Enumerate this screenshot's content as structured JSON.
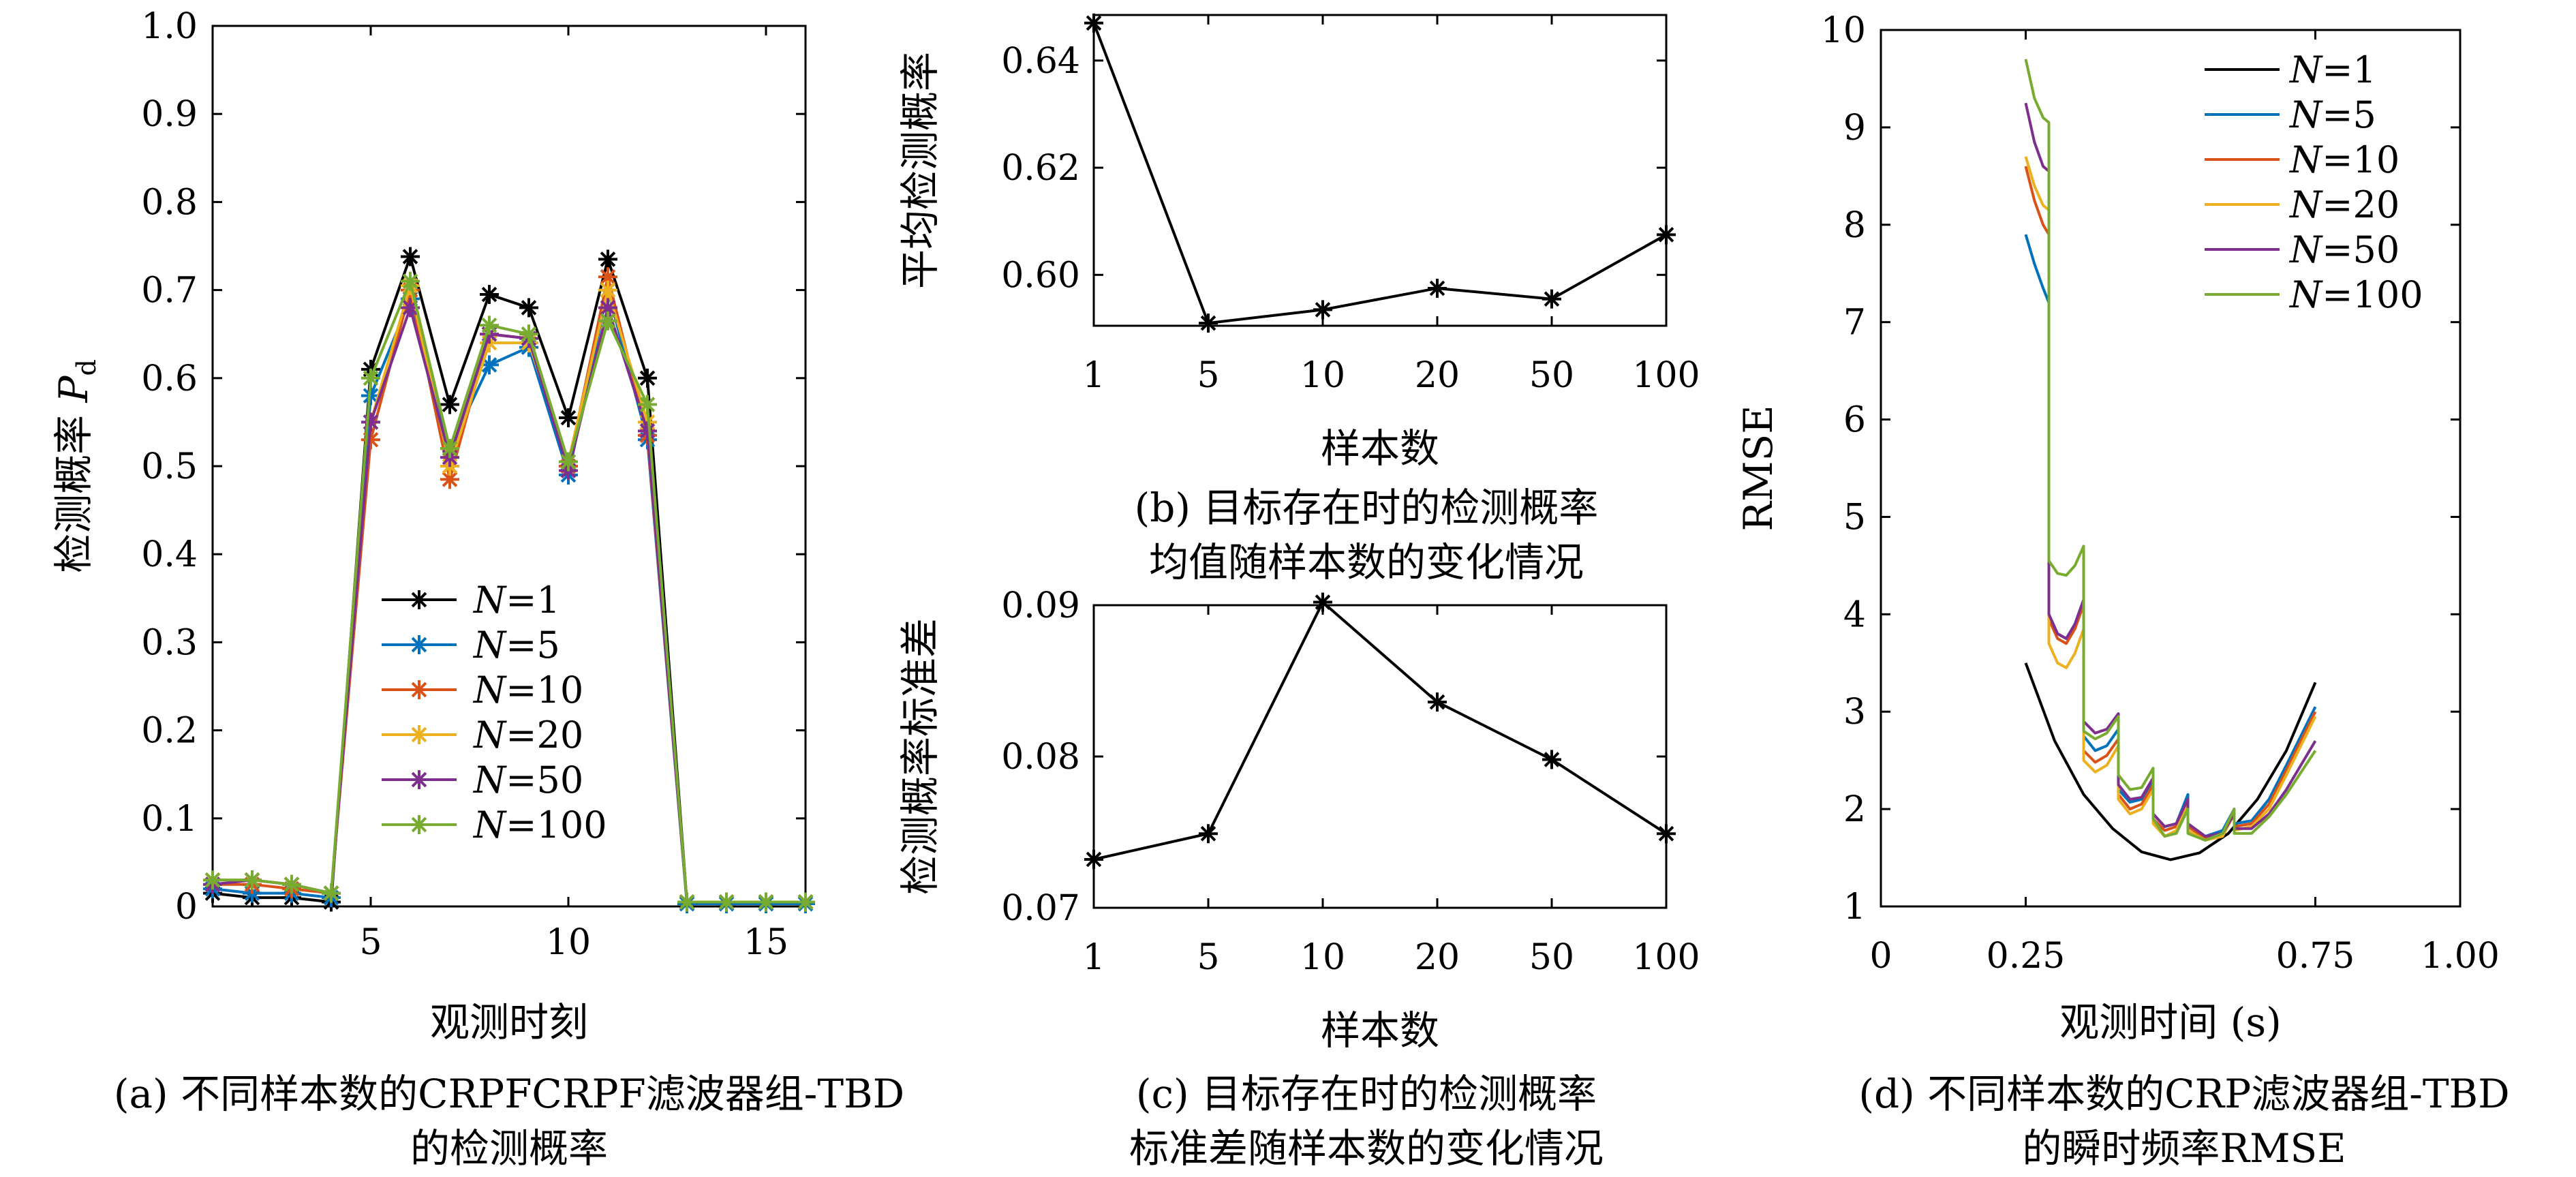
{
  "chart_data": [
    {
      "id": "a",
      "type": "line",
      "caption": [
        "(a) 不同样本数的CRPFCRPF滤波器组-TBD",
        "的检测概率"
      ],
      "xlabel": "观测时刻",
      "ylabel_main": "检测概率",
      "ylabel_sym": "P",
      "ylabel_sub": "d",
      "xlim": [
        1,
        16
      ],
      "ylim": [
        0,
        1
      ],
      "xticks": [
        5,
        10,
        15
      ],
      "yticks": [
        0,
        0.1,
        0.2,
        0.3,
        0.4,
        0.5,
        0.6,
        0.7,
        0.8,
        0.9,
        1.0
      ],
      "ytick_labels": [
        "0",
        "0.1",
        "0.2",
        "0.3",
        "0.4",
        "0.5",
        "0.6",
        "0.7",
        "0.8",
        "0.9",
        "1.0"
      ],
      "legend_position": "center",
      "x": [
        1,
        2,
        3,
        4,
        5,
        6,
        7,
        8,
        9,
        10,
        11,
        12,
        13,
        14,
        15,
        16
      ],
      "series": [
        {
          "label": "N",
          "eq": "=1",
          "color": "#000000",
          "values": [
            0.015,
            0.01,
            0.01,
            0.005,
            0.61,
            0.738,
            0.57,
            0.695,
            0.68,
            0.555,
            0.735,
            0.6,
            0.005,
            0.005,
            0.005,
            0.005
          ]
        },
        {
          "label": "N",
          "eq": "=5",
          "color": "#0072BD",
          "values": [
            0.02,
            0.015,
            0.015,
            0.01,
            0.58,
            0.69,
            0.52,
            0.615,
            0.635,
            0.49,
            0.7,
            0.53,
            0.003,
            0.003,
            0.003,
            0.003
          ]
        },
        {
          "label": "N",
          "eq": "=10",
          "color": "#D95319",
          "values": [
            0.025,
            0.025,
            0.02,
            0.015,
            0.53,
            0.7,
            0.485,
            0.65,
            0.645,
            0.5,
            0.715,
            0.535,
            0.005,
            0.005,
            0.005,
            0.005
          ]
        },
        {
          "label": "N",
          "eq": "=20",
          "color": "#EDB120",
          "values": [
            0.03,
            0.03,
            0.025,
            0.015,
            0.55,
            0.705,
            0.5,
            0.64,
            0.64,
            0.505,
            0.7,
            0.55,
            0.005,
            0.005,
            0.005,
            0.005
          ]
        },
        {
          "label": "N",
          "eq": "=50",
          "color": "#7E2F8E",
          "values": [
            0.025,
            0.03,
            0.025,
            0.015,
            0.55,
            0.68,
            0.51,
            0.65,
            0.645,
            0.495,
            0.68,
            0.54,
            0.005,
            0.005,
            0.005,
            0.005
          ]
        },
        {
          "label": "N",
          "eq": "=100",
          "color": "#77AC30",
          "values": [
            0.03,
            0.03,
            0.025,
            0.015,
            0.6,
            0.71,
            0.52,
            0.66,
            0.65,
            0.505,
            0.665,
            0.57,
            0.005,
            0.005,
            0.005,
            0.005
          ]
        }
      ]
    },
    {
      "id": "b",
      "type": "line",
      "caption": [
        "(b) 目标存在时的检测概率",
        "均值随样本数的变化情况"
      ],
      "xlabel": "样本数",
      "ylabel": "平均检测概率",
      "categories": [
        "1",
        "5",
        "10",
        "20",
        "50",
        "100"
      ],
      "values": [
        0.647,
        0.591,
        0.5935,
        0.5975,
        0.5955,
        0.6075
      ],
      "ylim": [
        0.5905,
        0.6485
      ],
      "yticks": [
        0.6,
        0.62,
        0.64
      ],
      "ytick_labels": [
        "0.60",
        "0.62",
        "0.64"
      ],
      "color": "#000000"
    },
    {
      "id": "c",
      "type": "line",
      "caption": [
        "(c) 目标存在时的检测概率",
        "标准差随样本数的变化情况"
      ],
      "xlabel": "样本数",
      "ylabel": "检测概率标准差",
      "categories": [
        "1",
        "5",
        "10",
        "20",
        "50",
        "100"
      ],
      "values": [
        0.0732,
        0.0749,
        0.0902,
        0.0836,
        0.0798,
        0.0749
      ],
      "ylim": [
        0.07,
        0.09
      ],
      "yticks": [
        0.07,
        0.08,
        0.09
      ],
      "ytick_labels": [
        "0.07",
        "0.08",
        "0.09"
      ],
      "color": "#000000"
    },
    {
      "id": "d",
      "type": "line",
      "caption": [
        "(d) 不同样本数的CRP滤波器组-TBD",
        "的瞬时频率RMSE"
      ],
      "xlabel": "观测时间 (s)",
      "ylabel": "RMSE",
      "xlim": [
        0,
        1
      ],
      "ylim": [
        1,
        10
      ],
      "xticks": [
        0,
        0.25,
        0.75,
        1.0
      ],
      "xtick_labels": [
        "0",
        "0.25",
        "0.75",
        "1.00"
      ],
      "yticks": [
        1,
        2,
        3,
        4,
        5,
        6,
        7,
        8,
        9,
        10
      ],
      "legend_position": "top-right",
      "series": [
        {
          "label": "N",
          "eq": "=1",
          "color": "#000000",
          "segments": [
            [
              [
                0.25,
                3.5
              ],
              [
                0.3,
                2.7
              ],
              [
                0.35,
                2.15
              ],
              [
                0.4,
                1.8
              ],
              [
                0.45,
                1.56
              ],
              [
                0.5,
                1.48
              ],
              [
                0.55,
                1.55
              ],
              [
                0.6,
                1.75
              ],
              [
                0.65,
                2.1
              ],
              [
                0.7,
                2.6
              ],
              [
                0.75,
                3.3
              ]
            ]
          ]
        },
        {
          "label": "N",
          "eq": "=5",
          "color": "#0072BD",
          "segments": [
            [
              [
                0.25,
                7.9
              ],
              [
                0.265,
                7.6
              ],
              [
                0.28,
                7.35
              ],
              [
                0.29,
                7.2
              ]
            ],
            [
              [
                0.29,
                4.0
              ],
              [
                0.305,
                3.8
              ],
              [
                0.32,
                3.75
              ],
              [
                0.335,
                3.9
              ],
              [
                0.35,
                4.15
              ]
            ],
            [
              [
                0.35,
                2.75
              ],
              [
                0.37,
                2.6
              ],
              [
                0.39,
                2.65
              ],
              [
                0.41,
                2.82
              ]
            ],
            [
              [
                0.41,
                2.2
              ],
              [
                0.43,
                2.07
              ],
              [
                0.45,
                2.1
              ],
              [
                0.47,
                2.3
              ]
            ],
            [
              [
                0.47,
                1.95
              ],
              [
                0.49,
                1.82
              ],
              [
                0.51,
                1.85
              ],
              [
                0.53,
                2.15
              ]
            ],
            [
              [
                0.53,
                1.85
              ],
              [
                0.56,
                1.72
              ],
              [
                0.59,
                1.78
              ],
              [
                0.61,
                2.0
              ]
            ],
            [
              [
                0.61,
                1.85
              ],
              [
                0.64,
                1.88
              ],
              [
                0.67,
                2.1
              ],
              [
                0.7,
                2.45
              ],
              [
                0.75,
                3.05
              ]
            ]
          ]
        },
        {
          "label": "N",
          "eq": "=10",
          "color": "#D95319",
          "segments": [
            [
              [
                0.25,
                8.6
              ],
              [
                0.265,
                8.25
              ],
              [
                0.28,
                8.0
              ],
              [
                0.29,
                7.9
              ]
            ],
            [
              [
                0.29,
                3.95
              ],
              [
                0.305,
                3.75
              ],
              [
                0.32,
                3.7
              ],
              [
                0.335,
                3.85
              ],
              [
                0.35,
                4.1
              ]
            ],
            [
              [
                0.35,
                2.6
              ],
              [
                0.37,
                2.48
              ],
              [
                0.39,
                2.55
              ],
              [
                0.41,
                2.72
              ]
            ],
            [
              [
                0.41,
                2.15
              ],
              [
                0.43,
                2.0
              ],
              [
                0.45,
                2.05
              ],
              [
                0.47,
                2.25
              ]
            ],
            [
              [
                0.47,
                1.9
              ],
              [
                0.49,
                1.78
              ],
              [
                0.51,
                1.82
              ],
              [
                0.53,
                2.1
              ]
            ],
            [
              [
                0.53,
                1.82
              ],
              [
                0.56,
                1.7
              ],
              [
                0.59,
                1.75
              ],
              [
                0.61,
                1.98
              ]
            ],
            [
              [
                0.61,
                1.82
              ],
              [
                0.64,
                1.85
              ],
              [
                0.67,
                2.05
              ],
              [
                0.7,
                2.4
              ],
              [
                0.75,
                3.0
              ]
            ]
          ]
        },
        {
          "label": "N",
          "eq": "=20",
          "color": "#EDB120",
          "segments": [
            [
              [
                0.25,
                8.7
              ],
              [
                0.265,
                8.4
              ],
              [
                0.28,
                8.2
              ],
              [
                0.29,
                8.15
              ]
            ],
            [
              [
                0.29,
                3.7
              ],
              [
                0.305,
                3.5
              ],
              [
                0.32,
                3.45
              ],
              [
                0.335,
                3.6
              ],
              [
                0.35,
                3.85
              ]
            ],
            [
              [
                0.35,
                2.5
              ],
              [
                0.37,
                2.38
              ],
              [
                0.39,
                2.45
              ],
              [
                0.41,
                2.65
              ]
            ],
            [
              [
                0.41,
                2.1
              ],
              [
                0.43,
                1.95
              ],
              [
                0.45,
                2.0
              ],
              [
                0.47,
                2.2
              ]
            ],
            [
              [
                0.47,
                1.85
              ],
              [
                0.49,
                1.72
              ],
              [
                0.51,
                1.78
              ],
              [
                0.53,
                2.05
              ]
            ],
            [
              [
                0.53,
                1.78
              ],
              [
                0.56,
                1.68
              ],
              [
                0.59,
                1.72
              ],
              [
                0.61,
                1.95
              ]
            ],
            [
              [
                0.61,
                1.78
              ],
              [
                0.64,
                1.82
              ],
              [
                0.67,
                2.0
              ],
              [
                0.7,
                2.35
              ],
              [
                0.75,
                2.95
              ]
            ]
          ]
        },
        {
          "label": "N",
          "eq": "=50",
          "color": "#7E2F8E",
          "segments": [
            [
              [
                0.25,
                9.25
              ],
              [
                0.265,
                8.85
              ],
              [
                0.28,
                8.6
              ],
              [
                0.29,
                8.55
              ]
            ],
            [
              [
                0.29,
                4.0
              ],
              [
                0.305,
                3.8
              ],
              [
                0.32,
                3.75
              ],
              [
                0.335,
                3.9
              ],
              [
                0.35,
                4.15
              ]
            ],
            [
              [
                0.35,
                2.9
              ],
              [
                0.37,
                2.78
              ],
              [
                0.39,
                2.82
              ],
              [
                0.41,
                2.98
              ]
            ],
            [
              [
                0.41,
                2.25
              ],
              [
                0.43,
                2.1
              ],
              [
                0.45,
                2.12
              ],
              [
                0.47,
                2.32
              ]
            ],
            [
              [
                0.47,
                1.95
              ],
              [
                0.49,
                1.82
              ],
              [
                0.51,
                1.85
              ],
              [
                0.53,
                2.1
              ]
            ],
            [
              [
                0.53,
                1.85
              ],
              [
                0.56,
                1.72
              ],
              [
                0.59,
                1.75
              ],
              [
                0.61,
                1.95
              ]
            ],
            [
              [
                0.61,
                1.8
              ],
              [
                0.64,
                1.8
              ],
              [
                0.67,
                1.95
              ],
              [
                0.7,
                2.2
              ],
              [
                0.75,
                2.7
              ]
            ]
          ]
        },
        {
          "label": "N",
          "eq": "=100",
          "color": "#77AC30",
          "segments": [
            [
              [
                0.25,
                9.7
              ],
              [
                0.265,
                9.3
              ],
              [
                0.28,
                9.1
              ],
              [
                0.29,
                9.05
              ]
            ],
            [
              [
                0.29,
                4.55
              ],
              [
                0.305,
                4.42
              ],
              [
                0.32,
                4.4
              ],
              [
                0.335,
                4.5
              ],
              [
                0.35,
                4.7
              ]
            ],
            [
              [
                0.35,
                2.8
              ],
              [
                0.37,
                2.72
              ],
              [
                0.39,
                2.78
              ],
              [
                0.41,
                2.95
              ]
            ],
            [
              [
                0.41,
                2.35
              ],
              [
                0.43,
                2.2
              ],
              [
                0.45,
                2.22
              ],
              [
                0.47,
                2.42
              ]
            ],
            [
              [
                0.47,
                1.9
              ],
              [
                0.49,
                1.72
              ],
              [
                0.51,
                1.75
              ],
              [
                0.53,
                2.0
              ]
            ],
            [
              [
                0.53,
                1.75
              ],
              [
                0.56,
                1.68
              ],
              [
                0.59,
                1.75
              ],
              [
                0.61,
                2.0
              ]
            ],
            [
              [
                0.61,
                1.75
              ],
              [
                0.64,
                1.75
              ],
              [
                0.67,
                1.92
              ],
              [
                0.7,
                2.15
              ],
              [
                0.75,
                2.6
              ]
            ]
          ]
        }
      ]
    }
  ]
}
